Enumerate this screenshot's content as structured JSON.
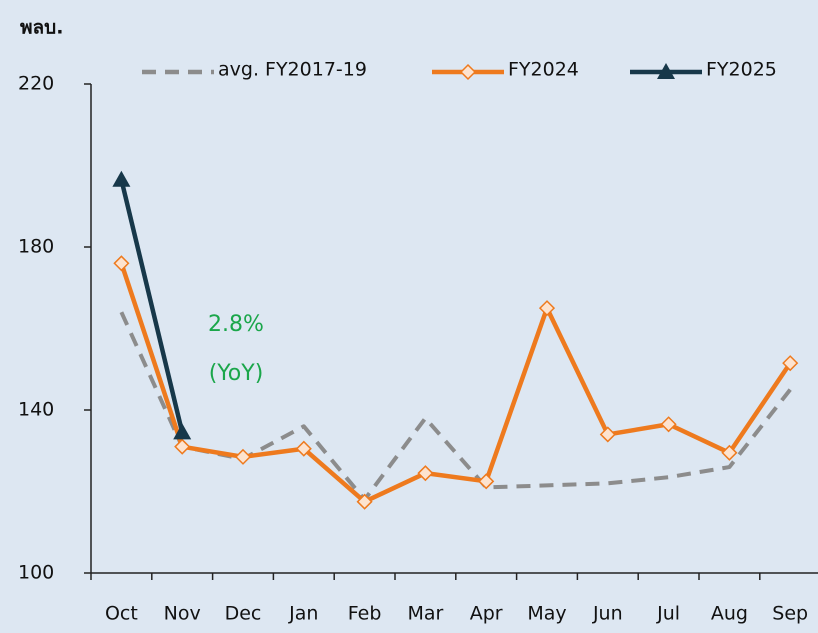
{
  "chart_data": {
    "type": "line",
    "y_label": "พลบ.",
    "categories": [
      "Oct",
      "Nov",
      "Dec",
      "Jan",
      "Feb",
      "Mar",
      "Apr",
      "May",
      "Jun",
      "Jul",
      "Aug",
      "Sep"
    ],
    "series": [
      {
        "name": "avg. FY2017-19",
        "color": "#8c8c8c",
        "dash": true,
        "marker": "none",
        "values": [
          164,
          131,
          128,
          136,
          118,
          138,
          121,
          121.5,
          122,
          123.5,
          126,
          145
        ]
      },
      {
        "name": "FY2024",
        "color": "#ee7a1e",
        "dash": false,
        "marker": "diamond",
        "values": [
          176,
          131,
          128.5,
          130.5,
          117.5,
          124.5,
          122.5,
          165,
          134,
          136.5,
          129.5,
          151.5
        ]
      },
      {
        "name": "FY2025",
        "color": "#17384a",
        "dash": false,
        "marker": "triangle",
        "values": [
          196.5,
          134.5,
          null,
          null,
          null,
          null,
          null,
          null,
          null,
          null,
          null,
          null
        ]
      }
    ],
    "annotations": [
      "2.8%",
      "(YoY)"
    ],
    "annotation_color": "#1aa64a",
    "ylim": [
      100,
      220
    ],
    "yticks": [
      100,
      140,
      180,
      220
    ]
  }
}
